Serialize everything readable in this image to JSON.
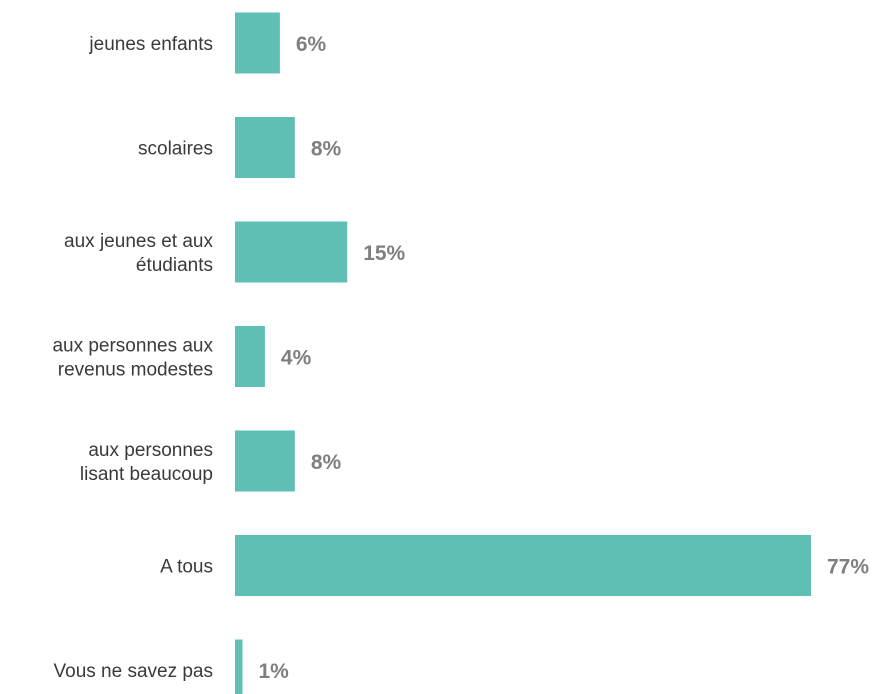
{
  "chart_data": {
    "type": "bar",
    "orientation": "horizontal",
    "categories": [
      [
        "jeunes enfants"
      ],
      [
        "scolaires"
      ],
      [
        "aux jeunes et aux",
        "étudiants"
      ],
      [
        "aux personnes aux",
        "revenus modestes"
      ],
      [
        "aux personnes",
        "lisant beaucoup"
      ],
      [
        "A tous"
      ],
      [
        "Vous ne savez pas"
      ]
    ],
    "values": [
      6,
      8,
      15,
      4,
      8,
      77,
      1
    ],
    "value_labels": [
      "6%",
      "8%",
      "15%",
      "4%",
      "8%",
      "77%",
      "1%"
    ],
    "unit": "%",
    "title": "",
    "xlabel": "",
    "ylabel": "",
    "xlim": [
      0,
      77
    ],
    "grid": false,
    "legend": "none",
    "colors": {
      "bar": "#5FBFB5",
      "value_label": "#7F7F7F",
      "category_label": "#3A3A3A"
    }
  }
}
